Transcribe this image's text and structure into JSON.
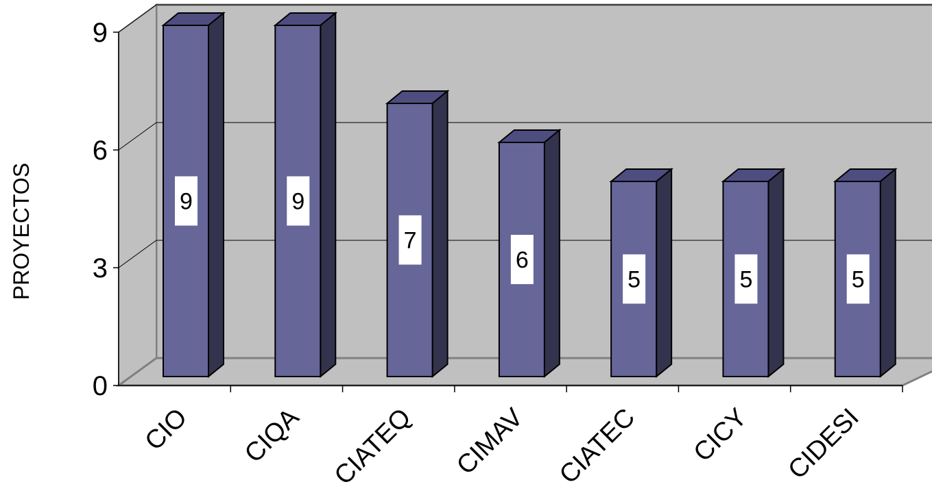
{
  "chart_data": {
    "type": "bar",
    "categories": [
      "CIO",
      "CIQA",
      "CIATEQ",
      "CIMAV",
      "CIATEC",
      "CICY",
      "CIDESI"
    ],
    "values": [
      9,
      9,
      7,
      6,
      5,
      5,
      5
    ],
    "data_labels": [
      "9",
      "9",
      "7",
      "6",
      "5",
      "5",
      "5"
    ],
    "ylabel": "PROYECTOS",
    "ylim": [
      0,
      9
    ],
    "yticks": [
      0,
      3,
      6,
      9
    ],
    "ytick_labels": [
      "0",
      "3",
      "6",
      "9"
    ],
    "grid": true,
    "style": "3d",
    "colors": {
      "bar_front": "#666699",
      "bar_side": "#33334D",
      "bar_top": "#4D4D80",
      "back_wall": "#C0C0C0",
      "side_wall": "#C0C0C0",
      "floor": "#C0C0C0"
    }
  }
}
